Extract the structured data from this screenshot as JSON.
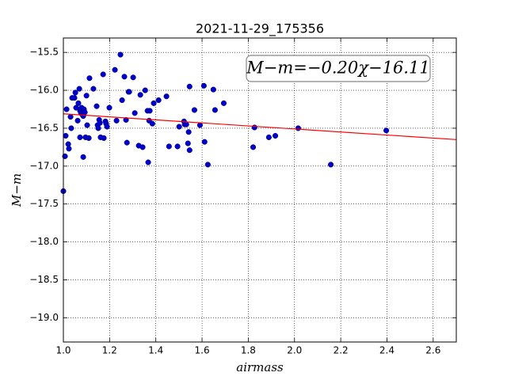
{
  "chart_data": {
    "type": "scatter",
    "title": "2021-11-29_175356",
    "x_label": "airmass",
    "y_label": "M−m",
    "annotation": "M−m=−0.20χ−16.11",
    "xlim": [
      1.0,
      2.7
    ],
    "xticks": [
      {
        "value": 1,
        "label": "1.0"
      },
      1.2,
      1.4,
      1.6,
      1.8,
      {
        "value": 2,
        "label": "2.0"
      },
      2.2,
      2.4,
      2.6
    ],
    "ylim": [
      -19.32,
      -15.31
    ],
    "yticks": [
      {
        "value": -15.5,
        "label": "−15.5"
      },
      {
        "value": -16,
        "label": "−16.0"
      },
      {
        "value": -16.5,
        "label": "−16.5"
      },
      {
        "value": -17,
        "label": "−17.0"
      },
      {
        "value": -17.5,
        "label": "−17.5"
      },
      {
        "value": -18,
        "label": "−18.0"
      },
      {
        "value": -18.5,
        "label": "−18.5"
      },
      {
        "value": -19,
        "label": "−19.0"
      }
    ],
    "grid": true,
    "series": [
      {
        "type": "scatter",
        "color": "#0000cc",
        "x": [
          1.0,
          1.007,
          1.01,
          1.014,
          1.021,
          1.024,
          1.031,
          1.034,
          1.038,
          1.048,
          1.052,
          1.055,
          1.062,
          1.065,
          1.069,
          1.072,
          1.072,
          1.076,
          1.079,
          1.082,
          1.086,
          1.086,
          1.089,
          1.093,
          1.096,
          1.1,
          1.103,
          1.11,
          1.113,
          1.13,
          1.144,
          1.148,
          1.151,
          1.155,
          1.158,
          1.161,
          1.172,
          1.175,
          1.182,
          1.185,
          1.189,
          1.199,
          1.223,
          1.23,
          1.247,
          1.254,
          1.264,
          1.271,
          1.275,
          1.282,
          1.285,
          1.302,
          1.309,
          1.326,
          1.333,
          1.343,
          1.354,
          1.364,
          1.367,
          1.371,
          1.374,
          1.385,
          1.391,
          1.412,
          1.446,
          1.457,
          1.494,
          1.501,
          1.522,
          1.525,
          1.532,
          1.539,
          1.542,
          1.546,
          1.546,
          1.567,
          1.591,
          1.608,
          1.611,
          1.625,
          1.649,
          1.656,
          1.694,
          1.821,
          1.827,
          1.889,
          1.917,
          2.016,
          2.157,
          2.397
        ],
        "values": [
          -17.33,
          -16.87,
          -16.6,
          -16.25,
          -16.71,
          -16.77,
          -16.35,
          -16.5,
          -16.1,
          -16.1,
          -16.03,
          -16.23,
          -16.4,
          -16.17,
          -15.98,
          -16.27,
          -16.62,
          -16.3,
          -16.23,
          -16.32,
          -16.34,
          -16.88,
          -16.25,
          -16.29,
          -16.62,
          -16.07,
          -16.46,
          -16.63,
          -15.84,
          -15.98,
          -16.21,
          -16.46,
          -16.5,
          -16.39,
          -16.43,
          -16.62,
          -15.79,
          -16.63,
          -16.41,
          -16.44,
          -16.48,
          -16.23,
          -15.73,
          -16.4,
          -15.53,
          -16.13,
          -15.82,
          -16.39,
          -16.69,
          -16.02,
          -16.02,
          -15.83,
          -16.3,
          -16.73,
          -16.06,
          -16.75,
          -16.0,
          -16.27,
          -16.95,
          -16.4,
          -16.27,
          -16.44,
          -16.17,
          -16.13,
          -16.08,
          -16.74,
          -16.74,
          -16.48,
          -16.41,
          -16.45,
          -16.45,
          -16.7,
          -16.55,
          -15.95,
          -16.79,
          -16.26,
          -16.46,
          -15.94,
          -16.68,
          -16.98,
          -15.99,
          -16.26,
          -16.17,
          -16.75,
          -16.49,
          -16.62,
          -16.6,
          -16.5,
          -16.98,
          -16.53
        ]
      },
      {
        "type": "line",
        "color": "#ff0000",
        "x": [
          1.0,
          2.7
        ],
        "values": [
          -16.31,
          -16.65
        ]
      }
    ]
  }
}
